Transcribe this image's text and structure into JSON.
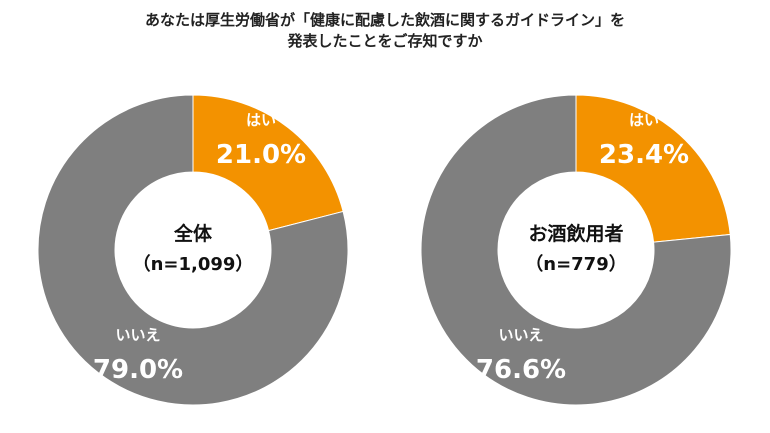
{
  "title_lines": [
    "あなたは厚生労働省が「健康に配慮した飲酒に関するガイドライン」を",
    "発表したことをご存知ですか"
  ],
  "colors": {
    "yes": "#f39200",
    "no": "#7f7f7f",
    "center": "#ffffff",
    "label": "#ffffff",
    "center_text": "#111111"
  },
  "chart_data": [
    {
      "type": "pie",
      "center_label": "全体",
      "center_sublabel": "（n=1,099）",
      "slices": [
        {
          "label": "はい",
          "value": 21.0,
          "value_label": "21.0%"
        },
        {
          "label": "いいえ",
          "value": 79.0,
          "value_label": "79.0%"
        }
      ]
    },
    {
      "type": "pie",
      "center_label": "お酒飲用者",
      "center_sublabel": "（n=779）",
      "slices": [
        {
          "label": "はい",
          "value": 23.4,
          "value_label": "23.4%"
        },
        {
          "label": "いいえ",
          "value": 76.6,
          "value_label": "76.6%"
        }
      ]
    }
  ]
}
